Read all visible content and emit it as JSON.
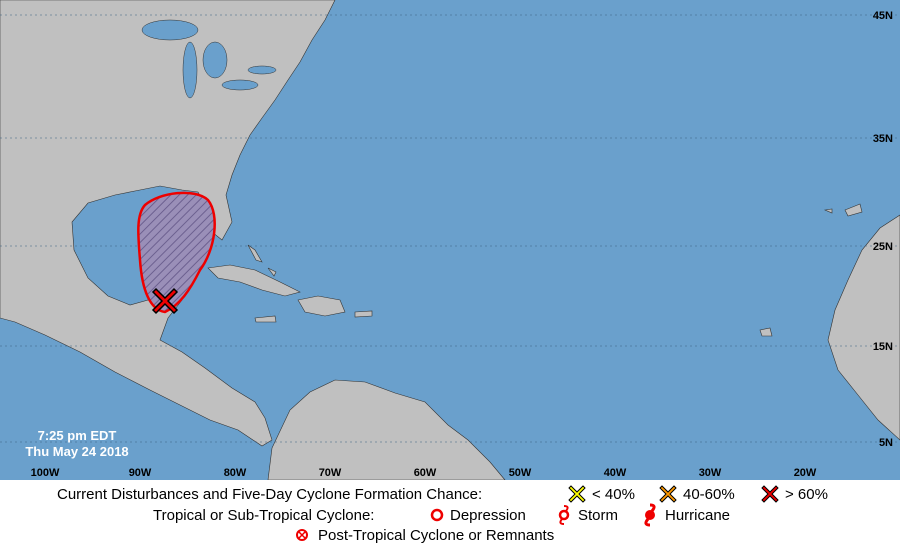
{
  "map": {
    "lat_labels": [
      "45N",
      "35N",
      "25N",
      "15N",
      "5N"
    ],
    "lon_labels": [
      "100W",
      "90W",
      "80W",
      "70W",
      "60W",
      "50W",
      "40W",
      "30W",
      "20W"
    ],
    "time": "7:25 pm EDT",
    "date": "Thu May 24 2018"
  },
  "legend": {
    "formation_title": "Current Disturbances and Five-Day Cyclone Formation Chance:",
    "low": "< 40%",
    "medium": "40-60%",
    "high": "> 60%",
    "cyclone_title": "Tropical or Sub-Tropical Cyclone:",
    "depression": "Depression",
    "storm": "Storm",
    "hurricane": "Hurricane",
    "post_tropical": "Post-Tropical Cyclone or Remnants"
  }
}
